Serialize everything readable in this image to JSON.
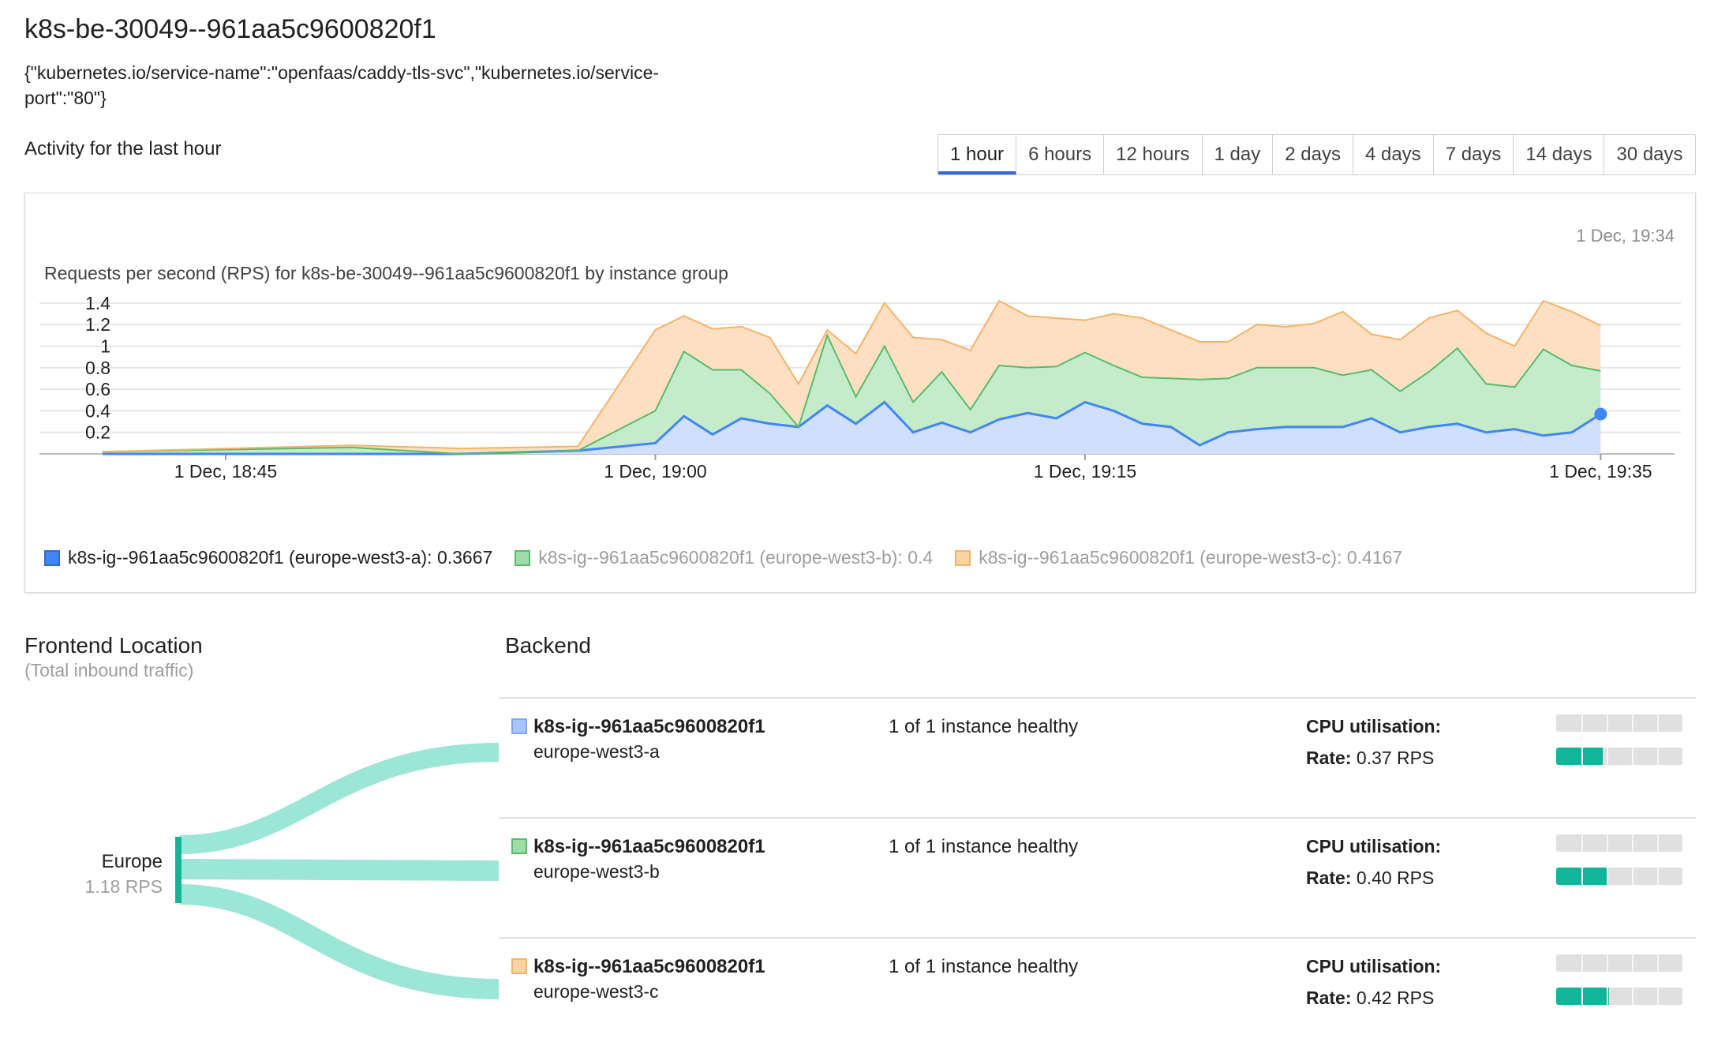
{
  "header": {
    "title": "k8s-be-30049--961aa5c9600820f1",
    "labels_text": "{\"kubernetes.io/service-name\":\"openfaas/caddy-tls-svc\",\"kubernetes.io/service-port\":\"80\"}",
    "activity_label": "Activity for the last hour"
  },
  "time_tabs": [
    {
      "label": "1 hour",
      "active": true
    },
    {
      "label": "6 hours",
      "active": false
    },
    {
      "label": "12 hours",
      "active": false
    },
    {
      "label": "1 day",
      "active": false
    },
    {
      "label": "2 days",
      "active": false
    },
    {
      "label": "4 days",
      "active": false
    },
    {
      "label": "7 days",
      "active": false
    },
    {
      "label": "14 days",
      "active": false
    },
    {
      "label": "30 days",
      "active": false
    }
  ],
  "chart": {
    "timestamp": "1 Dec, 19:34",
    "legend": [
      {
        "label": "k8s-ig--961aa5c9600820f1 (europe-west3-a): 0.3667"
      },
      {
        "label": "k8s-ig--961aa5c9600820f1 (europe-west3-b): 0.4"
      },
      {
        "label": "k8s-ig--961aa5c9600820f1 (europe-west3-c): 0.4167"
      }
    ]
  },
  "chart_data": {
    "type": "area",
    "title": "Requests per second (RPS) for k8s-be-30049--961aa5c9600820f1 by instance group",
    "stacked": true,
    "xlabel": "",
    "ylabel": "",
    "ylim": [
      0,
      1.45
    ],
    "yticks": [
      0.2,
      0.4,
      0.6,
      0.8,
      1,
      1.2,
      1.4
    ],
    "ytick_labels": [
      "0.2",
      "0.4",
      "0.6",
      "0.8",
      "1",
      "1.2",
      "1.4"
    ],
    "xlim_minutes": [
      -21.5,
      35.8
    ],
    "xticks_minutes": [
      -15,
      0,
      15,
      33
    ],
    "xtick_labels": [
      "1 Dec, 18:45",
      "1 Dec, 19:00",
      "1 Dec, 19:15",
      "1 Dec, 19:35"
    ],
    "grid": true,
    "legend_position": "bottom",
    "x_minutes": [
      -19.3,
      -10.6,
      -6.8,
      -2.7,
      0,
      1,
      2,
      3,
      4,
      5,
      6,
      7,
      8,
      9,
      10,
      11,
      12,
      13,
      14,
      15,
      16,
      17,
      18,
      19,
      20,
      21,
      22,
      23,
      24,
      25,
      26,
      27,
      28,
      29,
      30,
      31,
      32,
      33
    ],
    "series": [
      {
        "name": "k8s-ig--961aa5c9600820f1 (europe-west3-a)",
        "color": "#4285f4",
        "values": [
          0.0,
          0.0,
          0.0,
          0.03,
          0.1,
          0.35,
          0.18,
          0.33,
          0.28,
          0.25,
          0.45,
          0.28,
          0.48,
          0.2,
          0.29,
          0.2,
          0.32,
          0.38,
          0.33,
          0.48,
          0.4,
          0.28,
          0.25,
          0.08,
          0.2,
          0.23,
          0.25,
          0.25,
          0.25,
          0.33,
          0.2,
          0.25,
          0.28,
          0.2,
          0.23,
          0.17,
          0.2,
          0.37
        ]
      },
      {
        "name": "k8s-ig--961aa5c9600820f1 (europe-west3-b)",
        "color": "#57bb6a",
        "values": [
          0.02,
          0.06,
          0.0,
          0.0,
          0.3,
          0.6,
          0.6,
          0.45,
          0.28,
          0.0,
          0.65,
          0.25,
          0.52,
          0.28,
          0.47,
          0.21,
          0.5,
          0.42,
          0.48,
          0.46,
          0.42,
          0.43,
          0.45,
          0.61,
          0.5,
          0.57,
          0.55,
          0.55,
          0.48,
          0.45,
          0.38,
          0.51,
          0.7,
          0.45,
          0.39,
          0.8,
          0.62,
          0.4
        ]
      },
      {
        "name": "k8s-ig--961aa5c9600820f1 (europe-west3-c)",
        "color": "#f6b26b",
        "values": [
          0.0,
          0.02,
          0.05,
          0.04,
          0.75,
          0.33,
          0.38,
          0.4,
          0.52,
          0.4,
          0.05,
          0.4,
          0.4,
          0.6,
          0.3,
          0.55,
          0.6,
          0.48,
          0.45,
          0.3,
          0.48,
          0.55,
          0.45,
          0.35,
          0.34,
          0.4,
          0.38,
          0.41,
          0.59,
          0.33,
          0.48,
          0.5,
          0.35,
          0.47,
          0.38,
          0.45,
          0.5,
          0.42
        ]
      }
    ]
  },
  "frontend": {
    "title": "Frontend Location",
    "subtitle": "(Total inbound traffic)",
    "location": "Europe",
    "rps": "1.18 RPS",
    "flow_color": "#9ce6d8",
    "bar_color": "#12b59a"
  },
  "backend": {
    "title": "Backend",
    "rows": [
      {
        "name": "k8s-ig--961aa5c9600820f1",
        "zone": "europe-west3-a",
        "health": "1 of 1 instance healthy",
        "cpu_label": "CPU utilisation:",
        "rate_label": "Rate:",
        "rate_value": "0.37 RPS",
        "swatch": "#a9c4fb",
        "swatch_border": "#7ea6f7",
        "cpu_fraction": 0,
        "rate_fraction": 0.37
      },
      {
        "name": "k8s-ig--961aa5c9600820f1",
        "zone": "europe-west3-b",
        "health": "1 of 1 instance healthy",
        "cpu_label": "CPU utilisation:",
        "rate_label": "Rate:",
        "rate_value": "0.40 RPS",
        "swatch": "#9fdca8",
        "swatch_border": "#57bb6a",
        "cpu_fraction": 0,
        "rate_fraction": 0.4
      },
      {
        "name": "k8s-ig--961aa5c9600820f1",
        "zone": "europe-west3-c",
        "health": "1 of 1 instance healthy",
        "cpu_label": "CPU utilisation:",
        "rate_label": "Rate:",
        "rate_value": "0.42 RPS",
        "swatch": "#fbd3a6",
        "swatch_border": "#f6b26b",
        "cpu_fraction": 0,
        "rate_fraction": 0.42
      }
    ]
  }
}
